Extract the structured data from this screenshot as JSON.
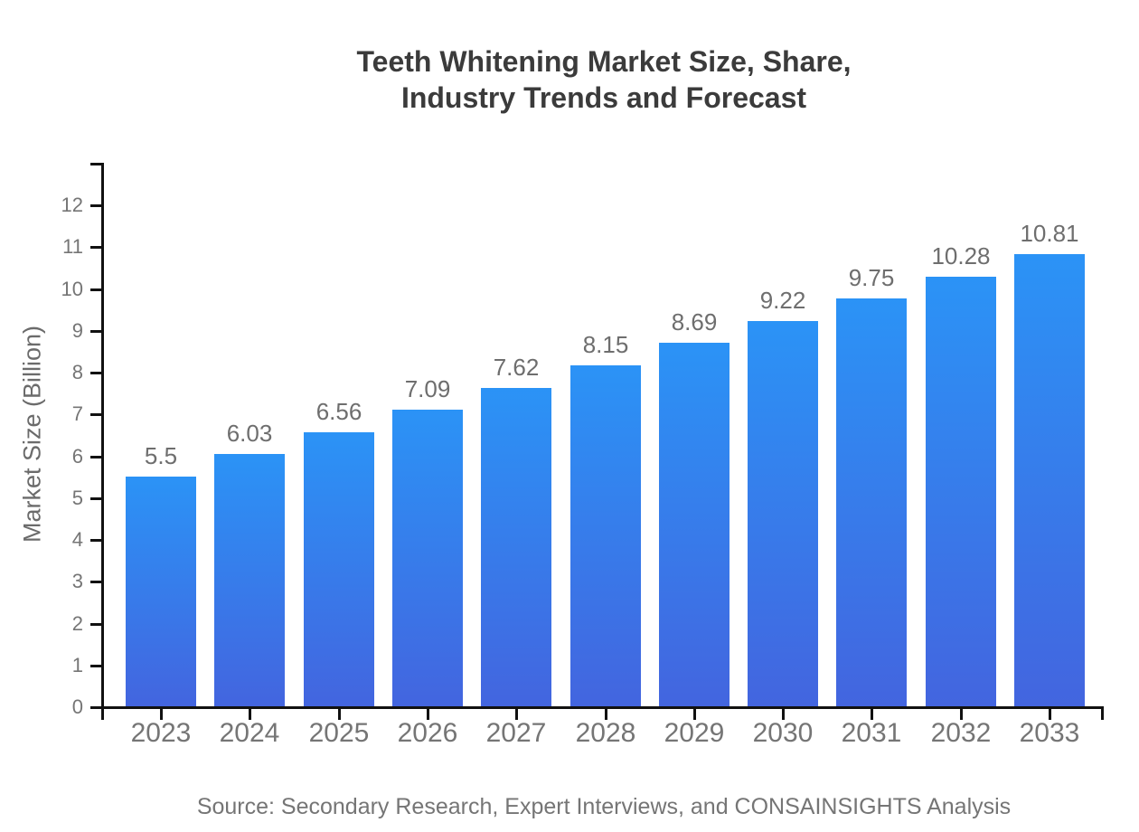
{
  "title": {
    "line1": "Teeth Whitening Market Size, Share,",
    "line2": "Industry Trends and Forecast"
  },
  "source": {
    "text": "Source: Secondary Research, Expert Interviews, and CONSAINSIGHTS Analysis"
  },
  "chart_data": {
    "type": "bar",
    "title": "Teeth Whitening Market Size, Share, Industry Trends and Forecast",
    "categories": [
      "2023",
      "2024",
      "2025",
      "2026",
      "2027",
      "2028",
      "2029",
      "2030",
      "2031",
      "2032",
      "2033"
    ],
    "values": [
      5.5,
      6.03,
      6.56,
      7.09,
      7.62,
      8.15,
      8.69,
      9.22,
      9.75,
      10.28,
      10.81
    ],
    "value_labels": [
      "5.5",
      "6.03",
      "6.56",
      "7.09",
      "7.62",
      "8.15",
      "8.69",
      "9.22",
      "9.75",
      "10.28",
      "10.81"
    ],
    "xlabel": "",
    "ylabel": "Market Size (Billion)",
    "ylim": [
      0,
      13
    ],
    "yticks": [
      0,
      1,
      2,
      3,
      4,
      5,
      6,
      7,
      8,
      9,
      10,
      11,
      12
    ],
    "grid": false,
    "legend_position": "none",
    "bar_gradient_top": "#2B93F6",
    "bar_gradient_bottom": "#4365DF",
    "axis_color": "#111111",
    "title_color": "#3b3b3b",
    "tick_label_color": "#757575",
    "value_label_color": "#6e6e6e",
    "background_color": "#ffffff"
  }
}
